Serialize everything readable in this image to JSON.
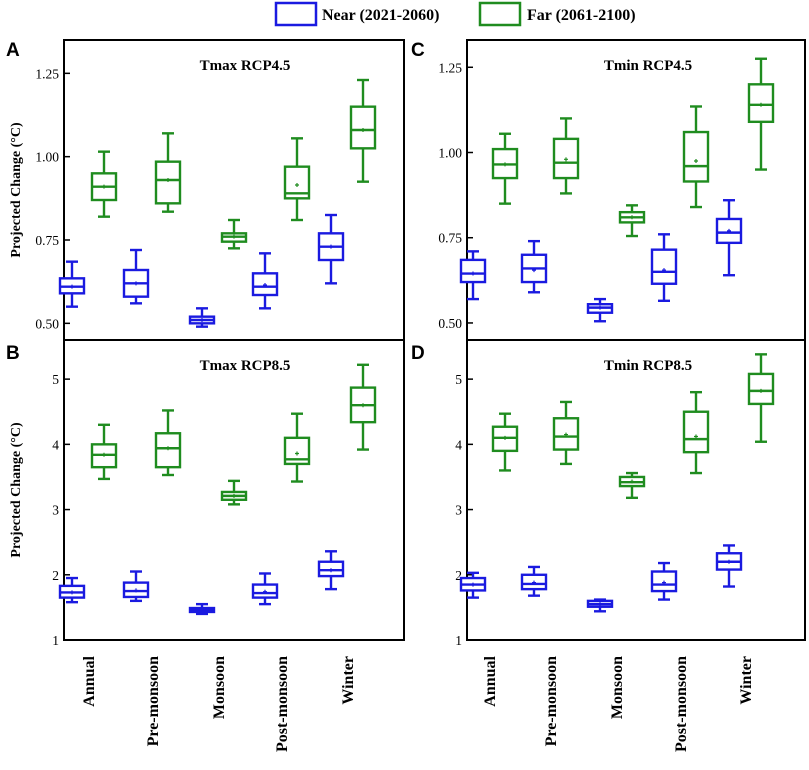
{
  "legend": {
    "near": {
      "label": "Near (2021-2060)",
      "color": "#1a1ae0"
    },
    "far": {
      "label": "Far (2061-2100)",
      "color": "#1f8c1f"
    }
  },
  "chart_data": [
    {
      "id": "A",
      "type": "box",
      "title": "Tmax RCP4.5",
      "ylabel": "Projected Change (°C)",
      "ylim": [
        0.45,
        1.35
      ],
      "yticks": [
        0.5,
        0.75,
        1.0,
        1.25
      ],
      "ytick_labels": [
        "0.50",
        "0.75",
        "1.00",
        "1.25"
      ],
      "categories": [
        "Annual",
        "Pre-monsoon",
        "Monsoon",
        "Post-monsoon",
        "Winter"
      ],
      "series": [
        {
          "name": "Near (2021-2060)",
          "boxes": [
            {
              "whisker_low": 0.55,
              "q1": 0.59,
              "median": 0.61,
              "mean": 0.61,
              "q3": 0.635,
              "whisker_high": 0.685
            },
            {
              "whisker_low": 0.56,
              "q1": 0.58,
              "median": 0.62,
              "mean": 0.62,
              "q3": 0.66,
              "whisker_high": 0.72
            },
            {
              "whisker_low": 0.49,
              "q1": 0.5,
              "median": 0.51,
              "mean": 0.51,
              "q3": 0.52,
              "whisker_high": 0.545
            },
            {
              "whisker_low": 0.545,
              "q1": 0.585,
              "median": 0.61,
              "mean": 0.615,
              "q3": 0.65,
              "whisker_high": 0.71
            },
            {
              "whisker_low": 0.62,
              "q1": 0.69,
              "median": 0.73,
              "mean": 0.73,
              "q3": 0.77,
              "whisker_high": 0.825
            }
          ]
        },
        {
          "name": "Far (2061-2100)",
          "boxes": [
            {
              "whisker_low": 0.82,
              "q1": 0.87,
              "median": 0.91,
              "mean": 0.91,
              "q3": 0.95,
              "whisker_high": 1.015
            },
            {
              "whisker_low": 0.835,
              "q1": 0.86,
              "median": 0.93,
              "mean": 0.93,
              "q3": 0.985,
              "whisker_high": 1.07
            },
            {
              "whisker_low": 0.725,
              "q1": 0.745,
              "median": 0.76,
              "mean": 0.76,
              "q3": 0.77,
              "whisker_high": 0.81
            },
            {
              "whisker_low": 0.81,
              "q1": 0.875,
              "median": 0.89,
              "mean": 0.915,
              "q3": 0.97,
              "whisker_high": 1.055
            },
            {
              "whisker_low": 0.925,
              "q1": 1.025,
              "median": 1.08,
              "mean": 1.08,
              "q3": 1.15,
              "whisker_high": 1.23
            }
          ]
        }
      ]
    },
    {
      "id": "B",
      "type": "box",
      "title": "Tmax RCP8.5",
      "ylabel": "Projected Change (°C)",
      "ylim": [
        1,
        5.6
      ],
      "yticks": [
        1,
        2,
        3,
        4,
        5
      ],
      "ytick_labels": [
        "1",
        "2",
        "3",
        "4",
        "5"
      ],
      "categories": [
        "Annual",
        "Pre-monsoon",
        "Monsoon",
        "Post-monsoon",
        "Winter"
      ],
      "series": [
        {
          "name": "Near (2021-2060)",
          "boxes": [
            {
              "whisker_low": 1.58,
              "q1": 1.65,
              "median": 1.73,
              "mean": 1.73,
              "q3": 1.83,
              "whisker_high": 1.95
            },
            {
              "whisker_low": 1.6,
              "q1": 1.66,
              "median": 1.75,
              "mean": 1.76,
              "q3": 1.88,
              "whisker_high": 2.05
            },
            {
              "whisker_low": 1.4,
              "q1": 1.43,
              "median": 1.46,
              "mean": 1.46,
              "q3": 1.49,
              "whisker_high": 1.55
            },
            {
              "whisker_low": 1.55,
              "q1": 1.65,
              "median": 1.72,
              "mean": 1.74,
              "q3": 1.85,
              "whisker_high": 2.02
            },
            {
              "whisker_low": 1.78,
              "q1": 1.98,
              "median": 2.07,
              "mean": 2.07,
              "q3": 2.2,
              "whisker_high": 2.36
            }
          ]
        },
        {
          "name": "Far (2061-2100)",
          "boxes": [
            {
              "whisker_low": 3.47,
              "q1": 3.65,
              "median": 3.84,
              "mean": 3.84,
              "q3": 4.0,
              "whisker_high": 4.3
            },
            {
              "whisker_low": 3.53,
              "q1": 3.65,
              "median": 3.94,
              "mean": 3.94,
              "q3": 4.17,
              "whisker_high": 4.52
            },
            {
              "whisker_low": 3.08,
              "q1": 3.15,
              "median": 3.21,
              "mean": 3.21,
              "q3": 3.27,
              "whisker_high": 3.44
            },
            {
              "whisker_low": 3.43,
              "q1": 3.7,
              "median": 3.77,
              "mean": 3.86,
              "q3": 4.1,
              "whisker_high": 4.47
            },
            {
              "whisker_low": 3.92,
              "q1": 4.34,
              "median": 4.6,
              "mean": 4.6,
              "q3": 4.87,
              "whisker_high": 5.22
            }
          ]
        }
      ]
    },
    {
      "id": "C",
      "type": "box",
      "title": "Tmin RCP4.5",
      "ylabel": "",
      "ylim": [
        0.45,
        1.33
      ],
      "yticks": [
        0.5,
        0.75,
        1.0,
        1.25
      ],
      "ytick_labels": [
        "0.50",
        "0.75",
        "1.00",
        "1.25"
      ],
      "categories": [
        "Annual",
        "Pre-monsoon",
        "Monsoon",
        "Post-monsoon",
        "Winter"
      ],
      "series": [
        {
          "name": "Near (2021-2060)",
          "boxes": [
            {
              "whisker_low": 0.57,
              "q1": 0.62,
              "median": 0.645,
              "mean": 0.645,
              "q3": 0.685,
              "whisker_high": 0.71
            },
            {
              "whisker_low": 0.59,
              "q1": 0.62,
              "median": 0.66,
              "mean": 0.655,
              "q3": 0.7,
              "whisker_high": 0.74
            },
            {
              "whisker_low": 0.505,
              "q1": 0.53,
              "median": 0.545,
              "mean": 0.545,
              "q3": 0.555,
              "whisker_high": 0.57
            },
            {
              "whisker_low": 0.565,
              "q1": 0.615,
              "median": 0.65,
              "mean": 0.655,
              "q3": 0.715,
              "whisker_high": 0.76
            },
            {
              "whisker_low": 0.64,
              "q1": 0.735,
              "median": 0.765,
              "mean": 0.77,
              "q3": 0.805,
              "whisker_high": 0.86
            }
          ]
        },
        {
          "name": "Far (2061-2100)",
          "boxes": [
            {
              "whisker_low": 0.85,
              "q1": 0.925,
              "median": 0.965,
              "mean": 0.965,
              "q3": 1.01,
              "whisker_high": 1.055
            },
            {
              "whisker_low": 0.88,
              "q1": 0.925,
              "median": 0.97,
              "mean": 0.98,
              "q3": 1.04,
              "whisker_high": 1.1
            },
            {
              "whisker_low": 0.755,
              "q1": 0.795,
              "median": 0.81,
              "mean": 0.81,
              "q3": 0.825,
              "whisker_high": 0.845
            },
            {
              "whisker_low": 0.84,
              "q1": 0.915,
              "median": 0.96,
              "mean": 0.975,
              "q3": 1.06,
              "whisker_high": 1.135
            },
            {
              "whisker_low": 0.95,
              "q1": 1.09,
              "median": 1.14,
              "mean": 1.14,
              "q3": 1.2,
              "whisker_high": 1.275
            }
          ]
        }
      ]
    },
    {
      "id": "D",
      "type": "box",
      "title": "Tmin RCP8.5",
      "ylabel": "",
      "ylim": [
        1,
        5.6
      ],
      "yticks": [
        1,
        2,
        3,
        4,
        5
      ],
      "ytick_labels": [
        "1",
        "2",
        "3",
        "4",
        "5"
      ],
      "categories": [
        "Annual",
        "Pre-monsoon",
        "Monsoon",
        "Post-monsoon",
        "Winter"
      ],
      "series": [
        {
          "name": "Near (2021-2060)",
          "boxes": [
            {
              "whisker_low": 1.65,
              "q1": 1.76,
              "median": 1.85,
              "mean": 1.85,
              "q3": 1.95,
              "whisker_high": 2.03
            },
            {
              "whisker_low": 1.68,
              "q1": 1.78,
              "median": 1.86,
              "mean": 1.88,
              "q3": 2.0,
              "whisker_high": 2.12
            },
            {
              "whisker_low": 1.44,
              "q1": 1.51,
              "median": 1.55,
              "mean": 1.55,
              "q3": 1.6,
              "whisker_high": 1.62
            },
            {
              "whisker_low": 1.62,
              "q1": 1.75,
              "median": 1.85,
              "mean": 1.88,
              "q3": 2.05,
              "whisker_high": 2.18
            },
            {
              "whisker_low": 1.82,
              "q1": 2.08,
              "median": 2.2,
              "mean": 2.2,
              "q3": 2.33,
              "whisker_high": 2.45
            }
          ]
        },
        {
          "name": "Far (2061-2100)",
          "boxes": [
            {
              "whisker_low": 3.6,
              "q1": 3.9,
              "median": 4.1,
              "mean": 4.1,
              "q3": 4.27,
              "whisker_high": 4.47
            },
            {
              "whisker_low": 3.7,
              "q1": 3.92,
              "median": 4.12,
              "mean": 4.15,
              "q3": 4.4,
              "whisker_high": 4.65
            },
            {
              "whisker_low": 3.18,
              "q1": 3.36,
              "median": 3.42,
              "mean": 3.43,
              "q3": 3.5,
              "whisker_high": 3.56
            },
            {
              "whisker_low": 3.56,
              "q1": 3.88,
              "median": 4.08,
              "mean": 4.12,
              "q3": 4.5,
              "whisker_high": 4.8
            },
            {
              "whisker_low": 4.04,
              "q1": 4.62,
              "median": 4.82,
              "mean": 4.82,
              "q3": 5.08,
              "whisker_high": 5.38
            }
          ]
        }
      ]
    }
  ]
}
